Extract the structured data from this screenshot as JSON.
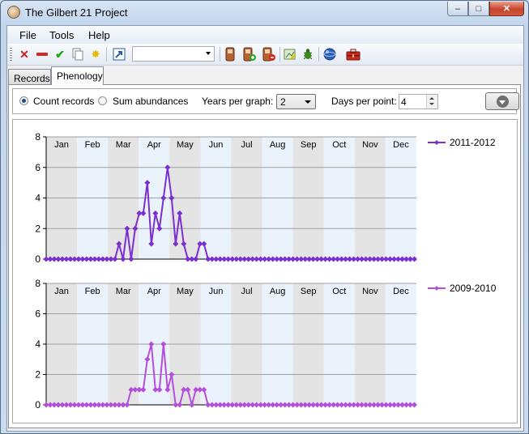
{
  "window": {
    "title": "The Gilbert 21 Project"
  },
  "caption_buttons": {
    "minimize": "–",
    "maximize": "□",
    "close": "✕"
  },
  "menu": {
    "items": [
      "File",
      "Tools",
      "Help"
    ]
  },
  "toolbar": {
    "icons": [
      "delete-icon",
      "remove-icon",
      "check-icon",
      "copy-icon",
      "new-icon",
      "link-icon",
      "combo",
      "phone-icon",
      "phone-add-icon",
      "phone-remove-icon",
      "image-edit-icon",
      "bug-icon",
      "globe-icon",
      "toolbox-icon"
    ],
    "combo_value": ""
  },
  "tabs": [
    {
      "label": "Records",
      "active": false
    },
    {
      "label": "Phenology",
      "active": true
    }
  ],
  "controls": {
    "count_records_label": "Count records",
    "sum_abundances_label": "Sum abundances",
    "selected_mode": "count_records",
    "years_per_graph_label": "Years per graph:",
    "years_per_graph_value": "2",
    "days_per_point_label": "Days per point:",
    "days_per_point_value": "4"
  },
  "chart_data": [
    {
      "type": "line",
      "months": [
        "Jan",
        "Feb",
        "Mar",
        "Apr",
        "May",
        "Jun",
        "Jul",
        "Aug",
        "Sep",
        "Oct",
        "Nov",
        "Dec"
      ],
      "yticks": [
        "8",
        "6",
        "4",
        "2",
        "0"
      ],
      "ylim": [
        0,
        8
      ],
      "xlim": [
        0,
        366
      ],
      "days_per_point": 4,
      "legend_position": "right",
      "series": [
        {
          "name": "2011-2012",
          "color": "#7a2fd0",
          "values": [
            0,
            0,
            0,
            0,
            0,
            0,
            0,
            0,
            0,
            0,
            0,
            0,
            0,
            0,
            0,
            0,
            0,
            0,
            1,
            0,
            2,
            0,
            2,
            3,
            3,
            5,
            1,
            3,
            2,
            4,
            6,
            4,
            1,
            3,
            1,
            0,
            0,
            0,
            1,
            1,
            0,
            0,
            0,
            0,
            0,
            0,
            0,
            0,
            0,
            0,
            0,
            0,
            0,
            0,
            0,
            0,
            0,
            0,
            0,
            0,
            0,
            0,
            0,
            0,
            0,
            0,
            0,
            0,
            0,
            0,
            0,
            0,
            0,
            0,
            0,
            0,
            0,
            0,
            0,
            0,
            0,
            0,
            0,
            0,
            0,
            0,
            0,
            0,
            0,
            0,
            0,
            0
          ]
        }
      ]
    },
    {
      "type": "line",
      "months": [
        "Jan",
        "Feb",
        "Mar",
        "Apr",
        "May",
        "Jun",
        "Jul",
        "Aug",
        "Sep",
        "Oct",
        "Nov",
        "Dec"
      ],
      "yticks": [
        "8",
        "6",
        "4",
        "2",
        "0"
      ],
      "ylim": [
        0,
        8
      ],
      "xlim": [
        0,
        366
      ],
      "days_per_point": 4,
      "legend_position": "right",
      "series": [
        {
          "name": "2009-2010",
          "color": "#b44fdc",
          "values": [
            0,
            0,
            0,
            0,
            0,
            0,
            0,
            0,
            0,
            0,
            0,
            0,
            0,
            0,
            0,
            0,
            0,
            0,
            0,
            0,
            0,
            1,
            1,
            1,
            1,
            3,
            4,
            1,
            1,
            4,
            1,
            2,
            0,
            0,
            1,
            1,
            0,
            1,
            1,
            1,
            0,
            0,
            0,
            0,
            0,
            0,
            0,
            0,
            0,
            0,
            0,
            0,
            0,
            0,
            0,
            0,
            0,
            0,
            0,
            0,
            0,
            0,
            0,
            0,
            0,
            0,
            0,
            0,
            0,
            0,
            0,
            0,
            0,
            0,
            0,
            0,
            0,
            0,
            0,
            0,
            0,
            0,
            0,
            0,
            0,
            0,
            0,
            0,
            0,
            0,
            0,
            0
          ]
        }
      ]
    }
  ]
}
